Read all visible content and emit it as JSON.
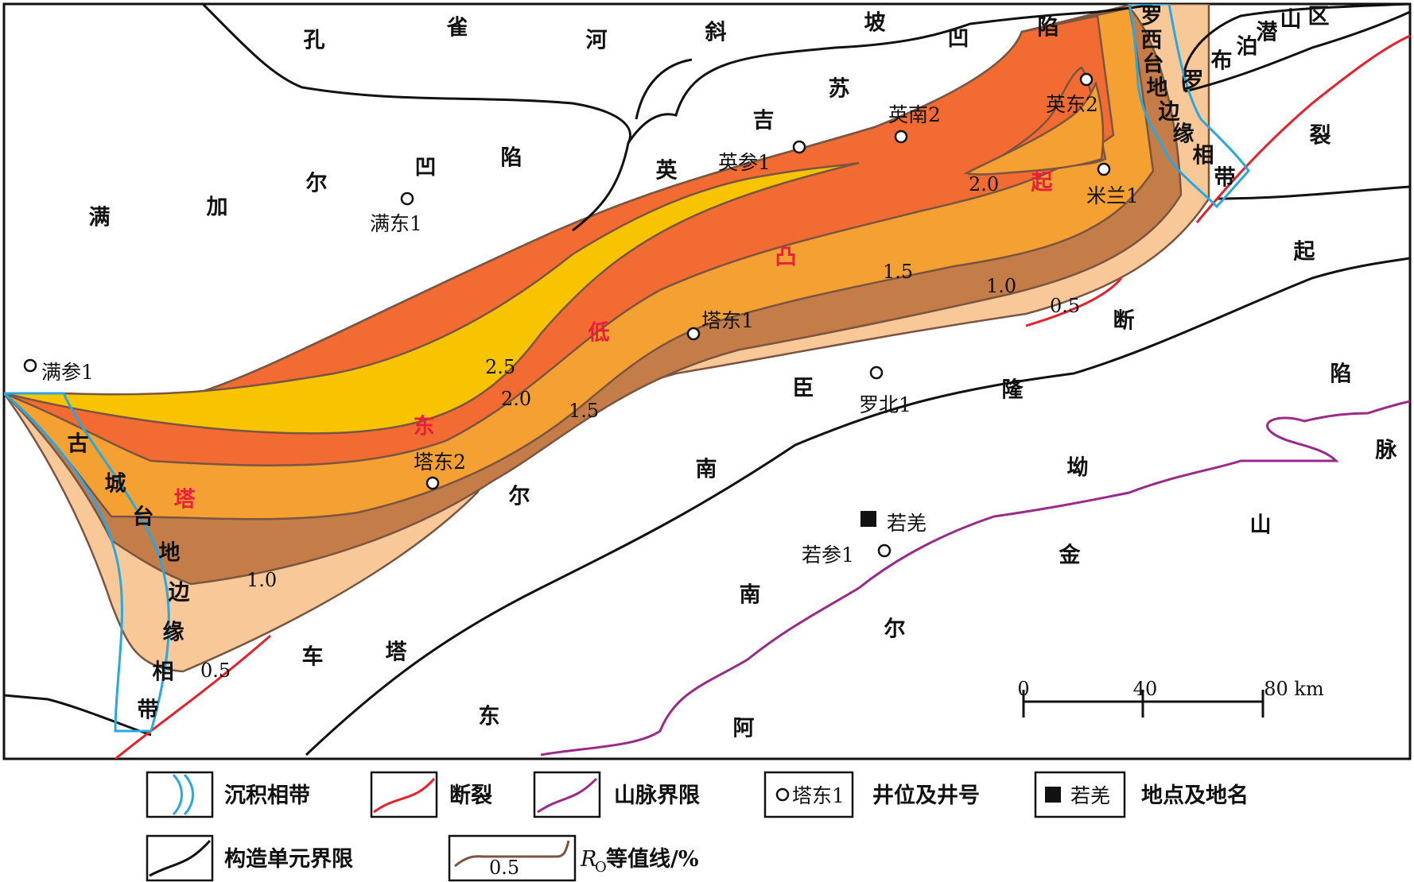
{
  "colors": {
    "ro_0_5": "#f8c898",
    "ro_1_0": "#c47c48",
    "ro_1_5": "#f5a033",
    "ro_2_0": "#f26b32",
    "ro_2_5": "#f8c300",
    "contour_line": "#7a5540",
    "facies_zone": "#29a8e0",
    "fault": "#e8202a",
    "mountain_boundary": "#9a2a8a",
    "tectonic_boundary": "#111111",
    "region_label_red": "#e8203c"
  },
  "region_labels": {
    "kongquehe": [
      "孔",
      "雀",
      "河",
      "斜",
      "坡",
      "凹",
      "陷"
    ],
    "manjiaer": [
      "满",
      "加",
      "尔",
      "凹",
      "陷"
    ],
    "yingjisu": [
      "英",
      "吉",
      "苏"
    ],
    "luobupo": [
      "罗",
      "布",
      "泊",
      "潜",
      "山",
      "区"
    ],
    "luoxi": [
      "罗",
      "西",
      "台",
      "地",
      "边",
      "缘",
      "相",
      "带"
    ],
    "kongque_fault": [
      "裂",
      "起",
      "断",
      "陷"
    ],
    "tadong_low": [
      "塔",
      "东",
      "低",
      "凸",
      "起"
    ],
    "gucheng": [
      "古",
      "城",
      "台",
      "地",
      "边",
      "缘",
      "相",
      "带"
    ],
    "tarim_south": [
      "尔",
      "南",
      "臣",
      "隆",
      "坳",
      "东",
      "阿",
      "金",
      "尔",
      "南",
      "车",
      "塔"
    ],
    "mountains": [
      "脉",
      "山"
    ]
  },
  "wells": [
    "满参1",
    "满东1",
    "英参1",
    "英南2",
    "英东2",
    "米兰1",
    "塔东1",
    "塔东2",
    "罗北1",
    "若参1"
  ],
  "places": [
    "若羌"
  ],
  "contour_labels": [
    "2.5",
    "2.0",
    "1.5",
    "1.0",
    "0.5",
    "2.0",
    "1.5",
    "1.0",
    "0.5",
    "1.0",
    "0.5",
    "1.5",
    "2.0"
  ],
  "scale_bar": {
    "ticks": [
      "0",
      "40",
      "80 km"
    ]
  },
  "legend": {
    "facies": "沉积相带",
    "fault": "断裂",
    "mountain": "山脉界限",
    "well_sample": "塔东1",
    "well": "井位及井号",
    "place_sample": "若羌",
    "place": "地点及地名",
    "tectonic": "构造单元界限",
    "contour_sample": "0.5",
    "ro_symbol": "R",
    "ro_sub": "O",
    "contour": "等值线/%"
  }
}
